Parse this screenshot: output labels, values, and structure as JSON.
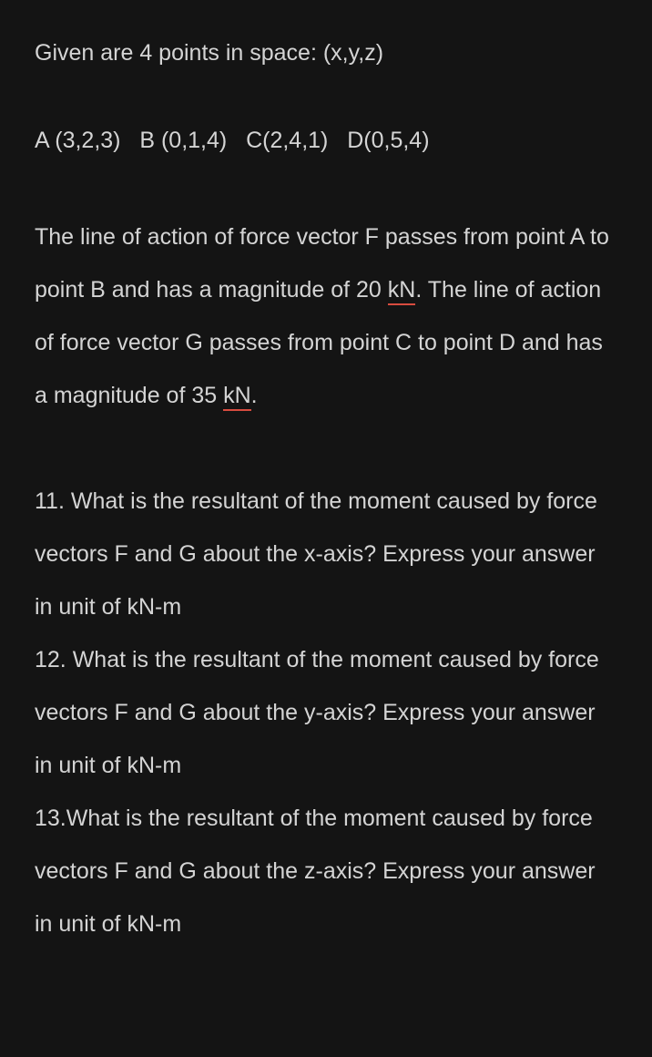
{
  "intro": "Given are 4 points in space: (x,y,z)",
  "points": {
    "A": "A (3,2,3)",
    "B": "B (0,1,4)",
    "C": "C(2,4,1)",
    "D": "D(0,5,4)"
  },
  "description": {
    "part1": "The line of action of force vector F passes from point A to point B and has a magnitude of 20 ",
    "unit1": "kN",
    "part2": ". The line of action of force vector G passes from point C to point D and has a magnitude of 35 ",
    "unit2": "kN",
    "part3": "."
  },
  "questions": {
    "q11": "11. What is the resultant of the moment caused by force vectors F and G about the x-axis? Express your answer in unit of kN-m",
    "q12": "12. What is the resultant of the moment caused by force vectors F and G about the y-axis? Express your answer in unit of kN-m",
    "q13": "13.What is the resultant of the moment caused by force vectors F and G about the z-axis? Express your answer in unit of kN-m"
  },
  "colors": {
    "background": "#141414",
    "text": "#d4d4d4",
    "underline": "#d84c3f"
  }
}
